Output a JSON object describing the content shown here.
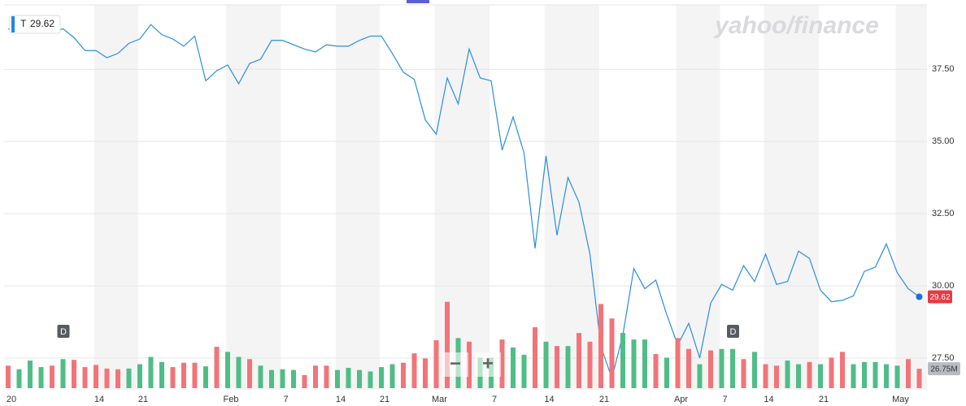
{
  "chart_data": {
    "type": "line",
    "watermark": "yahoo/finance",
    "categories": [
      "20",
      null,
      null,
      null,
      null,
      null,
      null,
      null,
      "14",
      null,
      null,
      null,
      "21",
      null,
      null,
      null,
      null,
      null,
      null,
      null,
      "Feb",
      null,
      null,
      null,
      null,
      "7",
      null,
      null,
      null,
      null,
      "14",
      null,
      null,
      null,
      "21",
      null,
      null,
      null,
      null,
      "Mar",
      null,
      null,
      null,
      null,
      "7",
      null,
      null,
      null,
      null,
      "14",
      null,
      null,
      null,
      null,
      "21",
      null,
      null,
      null,
      null,
      null,
      null,
      "Apr",
      null,
      null,
      null,
      "7",
      null,
      null,
      null,
      "14",
      null,
      null,
      null,
      null,
      "21",
      null,
      null,
      null,
      null,
      null,
      null,
      "May",
      null,
      null
    ],
    "series": [
      {
        "name": "T",
        "color": "#2a8ddf",
        "values": [
          38.9,
          38.8,
          39.1,
          39.0,
          38.8,
          38.9,
          38.6,
          38.15,
          38.15,
          37.9,
          38.05,
          38.4,
          38.55,
          39.05,
          38.7,
          38.55,
          38.3,
          38.65,
          37.1,
          37.45,
          37.65,
          37.0,
          37.7,
          37.85,
          38.5,
          38.5,
          38.35,
          38.2,
          38.1,
          38.35,
          38.3,
          38.3,
          38.5,
          38.65,
          38.65,
          38.05,
          37.4,
          37.15,
          35.75,
          35.25,
          37.2,
          36.3,
          38.2,
          37.2,
          37.1,
          34.7,
          35.85,
          34.6,
          31.3,
          34.5,
          31.75,
          33.75,
          32.9,
          31.1,
          27.9,
          26.8,
          28.3,
          30.6,
          29.9,
          30.2,
          29.0,
          27.95,
          28.7,
          27.5,
          29.4,
          30.05,
          29.85,
          30.7,
          30.15,
          31.1,
          30.05,
          30.15,
          31.2,
          30.95,
          29.85,
          29.45,
          29.5,
          29.65,
          30.5,
          30.65,
          31.45,
          30.45,
          29.9,
          29.62
        ]
      },
      {
        "type": "bar",
        "axis": "y2",
        "values": [
          31,
          26,
          38,
          29,
          31,
          40,
          39,
          29,
          32,
          27,
          26,
          27,
          33,
          43,
          36,
          29,
          35,
          35,
          30,
          57,
          50,
          43,
          40,
          31,
          25,
          26,
          25,
          18,
          31,
          31,
          25,
          28,
          25,
          23,
          29,
          33,
          35,
          48,
          41,
          66,
          119,
          69,
          64,
          42,
          42,
          67,
          56,
          46,
          84,
          64,
          58,
          58,
          76,
          64,
          116,
          96,
          76,
          67,
          67,
          47,
          42,
          69,
          54,
          33,
          52,
          54,
          54,
          40,
          50,
          33,
          31,
          38,
          33,
          36,
          33,
          42,
          50,
          33,
          36,
          36,
          33,
          31,
          40,
          26.75
        ],
        "value_labels": [
          null,
          null,
          null,
          null,
          null,
          null,
          null,
          null,
          null,
          null,
          null,
          null,
          null,
          null,
          null,
          null,
          null,
          null,
          null,
          null,
          null,
          null,
          null,
          null,
          null,
          null,
          null,
          null,
          null,
          null,
          null,
          null,
          null,
          null,
          null,
          null,
          null,
          null,
          null,
          null,
          null,
          null,
          null,
          null,
          null,
          null,
          null,
          null,
          null,
          null,
          null,
          null,
          null,
          null,
          null,
          null,
          null,
          null,
          null,
          null,
          null,
          null,
          null,
          null,
          null,
          null,
          null,
          null,
          null,
          null,
          null,
          null,
          null,
          null,
          null,
          null,
          null,
          null,
          null,
          null,
          null,
          null,
          null,
          "26.75M"
        ],
        "colors": [
          "#f27479",
          "#4fbd86",
          "#4fbd86",
          "#4fbd86",
          "#f27479",
          "#4fbd86",
          "#f27479",
          "#f27479",
          "#f27479",
          "#f27479",
          "#f27479",
          "#4fbd86",
          "#4fbd86",
          "#4fbd86",
          "#4fbd86",
          "#f27479",
          "#f27479",
          "#f27479",
          "#4fbd86",
          "#f27479",
          "#4fbd86",
          "#4fbd86",
          "#f27479",
          "#4fbd86",
          "#4fbd86",
          "#4fbd86",
          "#4fbd86",
          "#f27479",
          "#f27479",
          "#f27479",
          "#4fbd86",
          "#4fbd86",
          "#4fbd86",
          "#4fbd86",
          "#4fbd86",
          "#4fbd86",
          "#f27479",
          "#f27479",
          "#f27479",
          "#f27479",
          "#f27479",
          "#4fbd86",
          "#f27479",
          "#4fbd86",
          "#4fbd86",
          "#f27479",
          "#4fbd86",
          "#4fbd86",
          "#f27479",
          "#4fbd86",
          "#f27479",
          "#4fbd86",
          "#f27479",
          "#f27479",
          "#f27479",
          "#f27479",
          "#4fbd86",
          "#4fbd86",
          "#4fbd86",
          "#f27479",
          "#4fbd86",
          "#f27479",
          "#f27479",
          "#4fbd86",
          "#f27479",
          "#4fbd86",
          "#4fbd86",
          "#f27479",
          "#4fbd86",
          "#f27479",
          "#f27479",
          "#4fbd86",
          "#4fbd86",
          "#f27479",
          "#4fbd86",
          "#f27479",
          "#f27479",
          "#4fbd86",
          "#4fbd86",
          "#4fbd86",
          "#4fbd86",
          "#4fbd86",
          "#f27479",
          "#f27479"
        ]
      }
    ],
    "ylim": [
      26.4,
      39.9
    ],
    "yticks": [
      {
        "value": 37.5,
        "label": "37.50"
      },
      {
        "value": 35,
        "label": "35.00"
      },
      {
        "value": 32.5,
        "label": "32.50"
      },
      {
        "value": 30,
        "label": "30.00"
      },
      {
        "value": 27.5,
        "label": "27.50"
      }
    ],
    "y2lim": [
      0,
      535
    ],
    "grid": true,
    "events": [
      {
        "label": "D",
        "index": 5
      },
      {
        "label": "D",
        "index": 66
      }
    ],
    "controls": [
      "−",
      "+"
    ]
  }
}
